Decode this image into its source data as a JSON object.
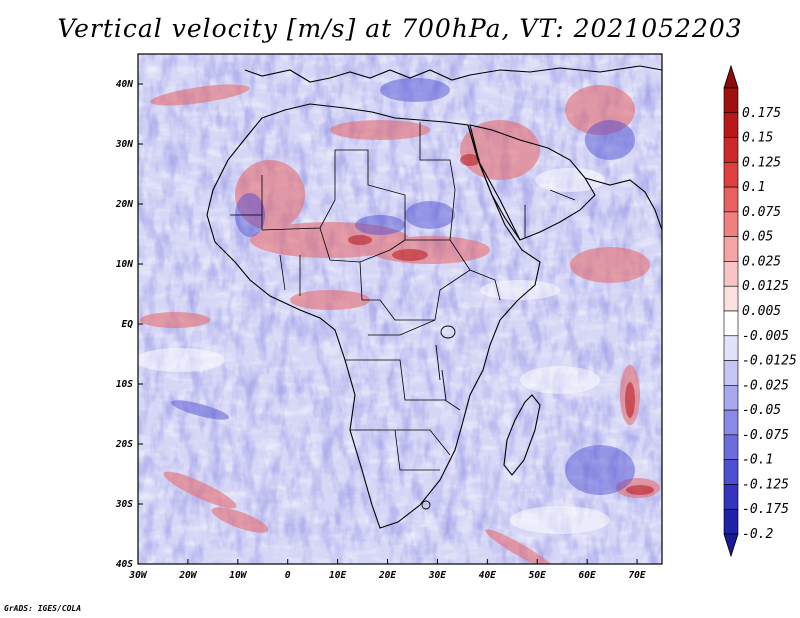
{
  "title": "Vertical velocity [m/s] at 700hPa, VT: 2021052203",
  "credit": "GrADS: IGES/COLA",
  "map": {
    "lon_range": [
      -30,
      75
    ],
    "lat_range": [
      -40,
      45
    ],
    "lon_ticks": [
      {
        "value": -30,
        "label": "30W"
      },
      {
        "value": -20,
        "label": "20W"
      },
      {
        "value": -10,
        "label": "10W"
      },
      {
        "value": 0,
        "label": "0"
      },
      {
        "value": 10,
        "label": "10E"
      },
      {
        "value": 20,
        "label": "20E"
      },
      {
        "value": 30,
        "label": "30E"
      },
      {
        "value": 40,
        "label": "40E"
      },
      {
        "value": 50,
        "label": "50E"
      },
      {
        "value": 60,
        "label": "60E"
      },
      {
        "value": 70,
        "label": "70E"
      }
    ],
    "lat_ticks": [
      {
        "value": 40,
        "label": "40N"
      },
      {
        "value": 30,
        "label": "30N"
      },
      {
        "value": 20,
        "label": "20N"
      },
      {
        "value": 10,
        "label": "10N"
      },
      {
        "value": 0,
        "label": "EQ"
      },
      {
        "value": -10,
        "label": "10S"
      },
      {
        "value": -20,
        "label": "20S"
      },
      {
        "value": -30,
        "label": "30S"
      },
      {
        "value": -40,
        "label": "40S"
      }
    ]
  },
  "colorbar": {
    "levels": [
      {
        "label": "0.175",
        "color": "#a01010"
      },
      {
        "label": "0.15",
        "color": "#b81818"
      },
      {
        "label": "0.125",
        "color": "#cc2828"
      },
      {
        "label": "0.1",
        "color": "#dc4040"
      },
      {
        "label": "0.075",
        "color": "#e86060"
      },
      {
        "label": "0.05",
        "color": "#f08080"
      },
      {
        "label": "0.025",
        "color": "#f4a4a4"
      },
      {
        "label": "0.0125",
        "color": "#f8c4c4"
      },
      {
        "label": "0.005",
        "color": "#fbe0e0"
      },
      {
        "label": "-0.005",
        "color": "#ffffff"
      },
      {
        "label": "-0.0125",
        "color": "#e2e2fa"
      },
      {
        "label": "-0.025",
        "color": "#c6c6f4"
      },
      {
        "label": "-0.05",
        "color": "#a8a8ee"
      },
      {
        "label": "-0.075",
        "color": "#8a8ae6"
      },
      {
        "label": "-0.1",
        "color": "#6c6cdc"
      },
      {
        "label": "-0.125",
        "color": "#4e4ed0"
      },
      {
        "label": "-0.175",
        "color": "#3434c0"
      },
      {
        "label": "-0.2",
        "color": "#2020a8"
      }
    ],
    "top_extend_color": "#8c0c0c",
    "bottom_extend_color": "#1a1a98"
  },
  "colors": {
    "upward_accent": "#dc3c3c",
    "downward_accent": "#4848d0",
    "coastline": "#000000"
  }
}
